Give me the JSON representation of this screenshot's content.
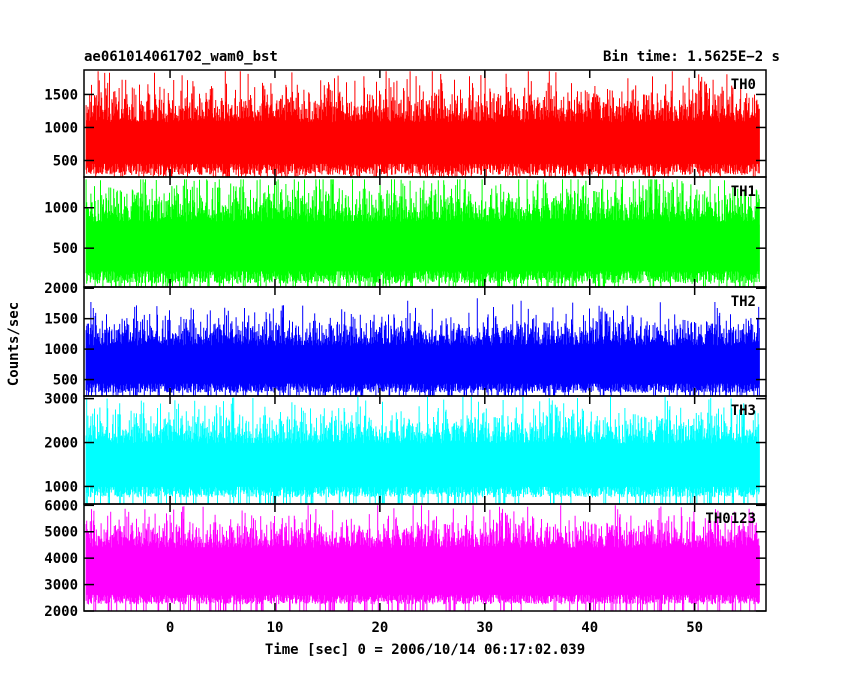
{
  "header": {
    "left_title": "ae061014061702_wam0_bst",
    "right_title": "Bin time: 1.5625E−2 s"
  },
  "chart_data": {
    "type": "line",
    "ylabel": "Counts/sec",
    "xlabel": "Time [sec] 0 = 2006/10/14 06:17:02.039",
    "xlim": [
      -8.2,
      56.8
    ],
    "data_x_range": [
      -8.0,
      56.2
    ],
    "bin_time_s": 0.015625,
    "x_ticks": [
      0,
      10,
      20,
      30,
      40,
      50
    ],
    "grid": false,
    "panels": [
      {
        "name": "TH0",
        "color": "#ff0000",
        "ylim": [
          250,
          1870
        ],
        "y_ticks": [
          500,
          1000,
          1500
        ],
        "baseline": 200,
        "mean": 850,
        "spread": 420,
        "peak_max": 1850,
        "trough_min": 280
      },
      {
        "name": "TH1",
        "color": "#00ff00",
        "ylim": [
          20,
          1380
        ],
        "y_ticks": [
          500,
          1000
        ],
        "baseline": 20,
        "mean": 620,
        "spread": 380,
        "peak_max": 1350,
        "trough_min": 60
      },
      {
        "name": "TH2",
        "color": "#0000ff",
        "ylim": [
          230,
          2020
        ],
        "y_ticks": [
          500,
          1000,
          1500,
          2000
        ],
        "baseline": 230,
        "mean": 850,
        "spread": 380,
        "peak_max": 1950,
        "trough_min": 280
      },
      {
        "name": "TH3",
        "color": "#00ffff",
        "ylim": [
          600,
          3060
        ],
        "y_ticks": [
          1000,
          2000,
          3000
        ],
        "baseline": 600,
        "mean": 1650,
        "spread": 600,
        "peak_max": 3050,
        "trough_min": 750
      },
      {
        "name": "TH0123",
        "color": "#ff00ff",
        "ylim": [
          2000,
          6050
        ],
        "y_ticks": [
          2000,
          3000,
          4000,
          5000,
          6000
        ],
        "baseline": 2000,
        "mean": 3900,
        "spread": 900,
        "peak_max": 6000,
        "trough_min": 2250
      }
    ]
  }
}
